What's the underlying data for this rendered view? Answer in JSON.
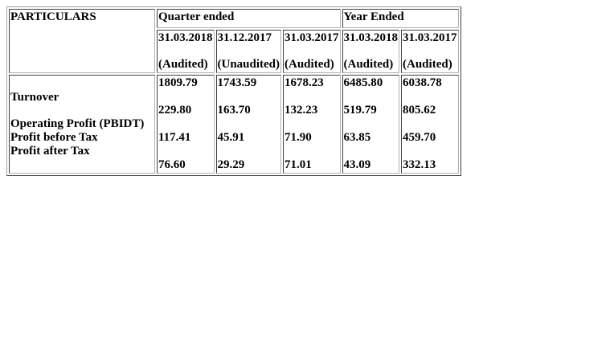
{
  "table": {
    "particulars_header": "PARTICULARS",
    "group_headers": {
      "quarter": "Quarter ended",
      "year": "Year Ended"
    },
    "columns": [
      {
        "date": "31.03.2018",
        "status": "(Audited)"
      },
      {
        "date": "31.12.2017",
        "status": "(Unaudited)"
      },
      {
        "date": "31.03.2017",
        "status": "(Audited)"
      },
      {
        "date": "31.03.2018",
        "status": "(Audited)"
      },
      {
        "date": "31.03.2017",
        "status": "(Audited)"
      }
    ],
    "row_labels": [
      "Turnover",
      "Operating Profit (PBIDT)",
      "Profit before Tax",
      "Profit after Tax"
    ],
    "values": [
      [
        "1809.79",
        "229.80",
        "117.41",
        "76.60"
      ],
      [
        "1743.59",
        "163.70",
        "45.91",
        "29.29"
      ],
      [
        "1678.23",
        "132.23",
        "71.90",
        "71.01"
      ],
      [
        "6485.80",
        "519.79",
        "63.85",
        "43.09"
      ],
      [
        "6038.78",
        "805.62",
        "459.70",
        "332.13"
      ]
    ]
  }
}
